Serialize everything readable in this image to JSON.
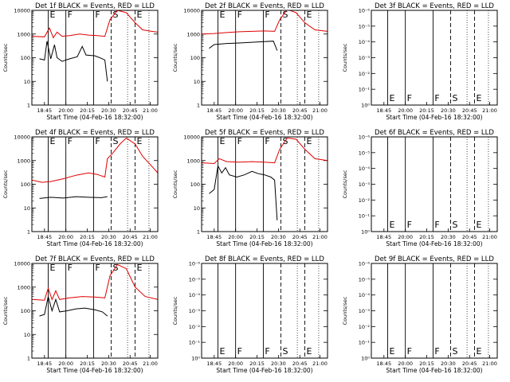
{
  "colors": {
    "events": "#000000",
    "lld": "#e00000",
    "axes": "#000000",
    "background": "#ffffff"
  },
  "chart_data": [
    {
      "type": "line",
      "title": "Det 1f BLACK = Events, RED = LLD",
      "xlabel": "Start Time (04-Feb-16 18:32:00)",
      "ylabel": "Counts/sec",
      "yscale": "log",
      "yticks": [
        "1",
        "10",
        "100",
        "1000",
        "10000"
      ],
      "xticks": [
        "18:45",
        "20:00",
        "20:15",
        "20:30",
        "20:45",
        "21:00"
      ],
      "markers": [
        {
          "label": "E",
          "style": "solid"
        },
        {
          "label": "F",
          "style": "solid"
        },
        {
          "label": "F",
          "style": "solid"
        },
        {
          "label": "S",
          "style": "dashed"
        },
        {
          "label": "E",
          "style": "dashed"
        }
      ],
      "series": [
        {
          "name": "Events",
          "color": "#000000",
          "values": [
            {
              "x": 0.06,
              "y": 90
            },
            {
              "x": 0.1,
              "y": 80
            },
            {
              "x": 0.12,
              "y": 500
            },
            {
              "x": 0.15,
              "y": 90
            },
            {
              "x": 0.18,
              "y": 350
            },
            {
              "x": 0.2,
              "y": 100
            },
            {
              "x": 0.24,
              "y": 70
            },
            {
              "x": 0.3,
              "y": 90
            },
            {
              "x": 0.36,
              "y": 110
            },
            {
              "x": 0.4,
              "y": 300
            },
            {
              "x": 0.43,
              "y": 130
            },
            {
              "x": 0.5,
              "y": 120
            },
            {
              "x": 0.55,
              "y": 95
            },
            {
              "x": 0.58,
              "y": 80
            },
            {
              "x": 0.6,
              "y": 10
            }
          ]
        },
        {
          "name": "LLD",
          "color": "#e00000",
          "values": [
            {
              "x": 0.0,
              "y": 800
            },
            {
              "x": 0.1,
              "y": 760
            },
            {
              "x": 0.14,
              "y": 1800
            },
            {
              "x": 0.17,
              "y": 700
            },
            {
              "x": 0.2,
              "y": 1200
            },
            {
              "x": 0.24,
              "y": 800
            },
            {
              "x": 0.3,
              "y": 850
            },
            {
              "x": 0.38,
              "y": 1000
            },
            {
              "x": 0.45,
              "y": 900
            },
            {
              "x": 0.52,
              "y": 850
            },
            {
              "x": 0.58,
              "y": 800
            },
            {
              "x": 0.62,
              "y": 4000
            },
            {
              "x": 0.68,
              "y": 10000
            },
            {
              "x": 0.75,
              "y": 8000
            },
            {
              "x": 0.82,
              "y": 3000
            },
            {
              "x": 0.88,
              "y": 1500
            },
            {
              "x": 0.95,
              "y": 1300
            },
            {
              "x": 1.0,
              "y": 1200
            }
          ]
        }
      ]
    },
    {
      "type": "line",
      "title": "Det 2f BLACK = Events, RED = LLD",
      "xlabel": "Start Time (04-Feb-16 18:32:00)",
      "ylabel": "Counts/sec",
      "yscale": "log",
      "yticks": [
        "1",
        "10",
        "100",
        "1000",
        "10000"
      ],
      "xticks": [
        "18:45",
        "20:00",
        "20:15",
        "20:30",
        "20:45",
        "21:00"
      ],
      "markers": [
        {
          "label": "E",
          "style": "solid"
        },
        {
          "label": "F",
          "style": "solid"
        },
        {
          "label": "F",
          "style": "solid"
        },
        {
          "label": "S",
          "style": "dashed"
        },
        {
          "label": "E",
          "style": "dashed"
        }
      ],
      "series": [
        {
          "name": "Events",
          "color": "#000000",
          "values": [
            {
              "x": 0.06,
              "y": 250
            },
            {
              "x": 0.1,
              "y": 360
            },
            {
              "x": 0.2,
              "y": 400
            },
            {
              "x": 0.3,
              "y": 420
            },
            {
              "x": 0.4,
              "y": 450
            },
            {
              "x": 0.5,
              "y": 480
            },
            {
              "x": 0.57,
              "y": 500
            },
            {
              "x": 0.6,
              "y": 200
            }
          ]
        },
        {
          "name": "LLD",
          "color": "#e00000",
          "values": [
            {
              "x": 0.0,
              "y": 1000
            },
            {
              "x": 0.1,
              "y": 1050
            },
            {
              "x": 0.2,
              "y": 1150
            },
            {
              "x": 0.3,
              "y": 1250
            },
            {
              "x": 0.4,
              "y": 1300
            },
            {
              "x": 0.5,
              "y": 1350
            },
            {
              "x": 0.58,
              "y": 1300
            },
            {
              "x": 0.62,
              "y": 4000
            },
            {
              "x": 0.68,
              "y": 11000
            },
            {
              "x": 0.75,
              "y": 8000
            },
            {
              "x": 0.82,
              "y": 3000
            },
            {
              "x": 0.9,
              "y": 1500
            },
            {
              "x": 1.0,
              "y": 1300
            }
          ]
        }
      ]
    },
    {
      "type": "line",
      "title": "Det 3f BLACK = Events, RED = LLD",
      "xlabel": "Start Time (04-Feb-16 18:32:00)",
      "ylabel": "Counts/sec",
      "yscale": "log",
      "yticks": [
        "10⁰",
        "10⁻¹",
        "10⁻²",
        "10⁻³",
        "10⁻⁴",
        "10⁻⁵",
        "10⁻⁶"
      ],
      "xticks": [
        "18:45",
        "20:00",
        "20:15",
        "20:30",
        "20:45",
        "21:00"
      ],
      "markers": [
        {
          "label": "E",
          "style": "solid"
        },
        {
          "label": "F",
          "style": "solid"
        },
        {
          "label": "F",
          "style": "solid"
        },
        {
          "label": "S",
          "style": "dashed"
        },
        {
          "label": "E",
          "style": "dashed"
        }
      ],
      "series": []
    },
    {
      "type": "line",
      "title": "Det 4f BLACK = Events, RED = LLD",
      "xlabel": "Start Time (04-Feb-16 18:32:00)",
      "ylabel": "Counts/sec",
      "yscale": "log",
      "yticks": [
        "1",
        "10",
        "100",
        "1000",
        "10000"
      ],
      "xticks": [
        "18:45",
        "20:00",
        "20:15",
        "20:30",
        "20:45",
        "21:00"
      ],
      "markers": [
        {
          "label": "E",
          "style": "solid"
        },
        {
          "label": "F",
          "style": "solid"
        },
        {
          "label": "F",
          "style": "solid"
        },
        {
          "label": "S",
          "style": "dashed"
        },
        {
          "label": "E",
          "style": "dashed"
        }
      ],
      "series": [
        {
          "name": "Events",
          "color": "#000000",
          "values": [
            {
              "x": 0.06,
              "y": 25
            },
            {
              "x": 0.15,
              "y": 28
            },
            {
              "x": 0.25,
              "y": 26
            },
            {
              "x": 0.35,
              "y": 30
            },
            {
              "x": 0.45,
              "y": 28
            },
            {
              "x": 0.55,
              "y": 27
            },
            {
              "x": 0.6,
              "y": 30
            }
          ]
        },
        {
          "name": "LLD",
          "color": "#e00000",
          "values": [
            {
              "x": 0.0,
              "y": 150
            },
            {
              "x": 0.08,
              "y": 120
            },
            {
              "x": 0.15,
              "y": 130
            },
            {
              "x": 0.25,
              "y": 170
            },
            {
              "x": 0.35,
              "y": 240
            },
            {
              "x": 0.45,
              "y": 300
            },
            {
              "x": 0.52,
              "y": 260
            },
            {
              "x": 0.58,
              "y": 200
            },
            {
              "x": 0.6,
              "y": 1200
            },
            {
              "x": 0.64,
              "y": 2000
            },
            {
              "x": 0.7,
              "y": 5000
            },
            {
              "x": 0.75,
              "y": 9000
            },
            {
              "x": 0.82,
              "y": 5000
            },
            {
              "x": 0.88,
              "y": 1500
            },
            {
              "x": 0.95,
              "y": 600
            },
            {
              "x": 1.0,
              "y": 300
            }
          ]
        }
      ]
    },
    {
      "type": "line",
      "title": "Det 5f BLACK = Events, RED = LLD",
      "xlabel": "Start Time (04-Feb-16 18:32:00)",
      "ylabel": "Counts/sec",
      "yscale": "log",
      "yticks": [
        "1",
        "10",
        "100",
        "1000",
        "10000"
      ],
      "xticks": [
        "18:45",
        "20:00",
        "20:15",
        "20:30",
        "20:45",
        "21:00"
      ],
      "markers": [
        {
          "label": "E",
          "style": "solid"
        },
        {
          "label": "F",
          "style": "solid"
        },
        {
          "label": "F",
          "style": "solid"
        },
        {
          "label": "S",
          "style": "dashed"
        },
        {
          "label": "E",
          "style": "dashed"
        }
      ],
      "series": [
        {
          "name": "Events",
          "color": "#000000",
          "values": [
            {
              "x": 0.06,
              "y": 40
            },
            {
              "x": 0.1,
              "y": 60
            },
            {
              "x": 0.13,
              "y": 600
            },
            {
              "x": 0.16,
              "y": 300
            },
            {
              "x": 0.19,
              "y": 500
            },
            {
              "x": 0.22,
              "y": 250
            },
            {
              "x": 0.28,
              "y": 200
            },
            {
              "x": 0.34,
              "y": 250
            },
            {
              "x": 0.4,
              "y": 350
            },
            {
              "x": 0.45,
              "y": 280
            },
            {
              "x": 0.5,
              "y": 250
            },
            {
              "x": 0.55,
              "y": 200
            },
            {
              "x": 0.58,
              "y": 150
            },
            {
              "x": 0.6,
              "y": 3
            }
          ]
        },
        {
          "name": "LLD",
          "color": "#e00000",
          "values": [
            {
              "x": 0.0,
              "y": 800
            },
            {
              "x": 0.1,
              "y": 750
            },
            {
              "x": 0.14,
              "y": 1200
            },
            {
              "x": 0.2,
              "y": 900
            },
            {
              "x": 0.3,
              "y": 850
            },
            {
              "x": 0.4,
              "y": 900
            },
            {
              "x": 0.5,
              "y": 850
            },
            {
              "x": 0.58,
              "y": 800
            },
            {
              "x": 0.62,
              "y": 3000
            },
            {
              "x": 0.68,
              "y": 9000
            },
            {
              "x": 0.75,
              "y": 8000
            },
            {
              "x": 0.82,
              "y": 3000
            },
            {
              "x": 0.9,
              "y": 1200
            },
            {
              "x": 1.0,
              "y": 1000
            }
          ]
        }
      ]
    },
    {
      "type": "line",
      "title": "Det 6f BLACK = Events, RED = LLD",
      "xlabel": "Start Time (04-Feb-16 18:32:00)",
      "ylabel": "Counts/sec",
      "yscale": "log",
      "yticks": [
        "10⁰",
        "10⁻¹",
        "10⁻²",
        "10⁻³",
        "10⁻⁴",
        "10⁻⁵",
        "10⁻⁶"
      ],
      "xticks": [
        "18:45",
        "20:00",
        "20:15",
        "20:30",
        "20:45",
        "21:00"
      ],
      "markers": [
        {
          "label": "E",
          "style": "solid"
        },
        {
          "label": "F",
          "style": "solid"
        },
        {
          "label": "F",
          "style": "solid"
        },
        {
          "label": "S",
          "style": "dashed"
        },
        {
          "label": "E",
          "style": "dashed"
        }
      ],
      "series": []
    },
    {
      "type": "line",
      "title": "Det 7f BLACK = Events, RED = LLD",
      "xlabel": "Start Time (04-Feb-16 18:32:00)",
      "ylabel": "Counts/sec",
      "yscale": "log",
      "yticks": [
        "1",
        "10",
        "100",
        "1000",
        "10000"
      ],
      "xticks": [
        "18:45",
        "20:00",
        "20:15",
        "20:30",
        "20:45",
        "21:00"
      ],
      "markers": [
        {
          "label": "E",
          "style": "solid"
        },
        {
          "label": "F",
          "style": "solid"
        },
        {
          "label": "F",
          "style": "solid"
        },
        {
          "label": "S",
          "style": "dashed"
        },
        {
          "label": "E",
          "style": "dashed"
        }
      ],
      "series": [
        {
          "name": "Events",
          "color": "#000000",
          "values": [
            {
              "x": 0.06,
              "y": 60
            },
            {
              "x": 0.1,
              "y": 70
            },
            {
              "x": 0.13,
              "y": 400
            },
            {
              "x": 0.16,
              "y": 100
            },
            {
              "x": 0.19,
              "y": 300
            },
            {
              "x": 0.22,
              "y": 90
            },
            {
              "x": 0.28,
              "y": 100
            },
            {
              "x": 0.35,
              "y": 120
            },
            {
              "x": 0.42,
              "y": 130
            },
            {
              "x": 0.5,
              "y": 110
            },
            {
              "x": 0.56,
              "y": 90
            },
            {
              "x": 0.6,
              "y": 60
            }
          ]
        },
        {
          "name": "LLD",
          "color": "#e00000",
          "values": [
            {
              "x": 0.0,
              "y": 300
            },
            {
              "x": 0.1,
              "y": 280
            },
            {
              "x": 0.13,
              "y": 900
            },
            {
              "x": 0.16,
              "y": 300
            },
            {
              "x": 0.19,
              "y": 700
            },
            {
              "x": 0.22,
              "y": 300
            },
            {
              "x": 0.3,
              "y": 350
            },
            {
              "x": 0.4,
              "y": 400
            },
            {
              "x": 0.5,
              "y": 380
            },
            {
              "x": 0.58,
              "y": 350
            },
            {
              "x": 0.62,
              "y": 3000
            },
            {
              "x": 0.68,
              "y": 9000
            },
            {
              "x": 0.75,
              "y": 6000
            },
            {
              "x": 0.82,
              "y": 1000
            },
            {
              "x": 0.9,
              "y": 400
            },
            {
              "x": 1.0,
              "y": 300
            }
          ]
        }
      ]
    },
    {
      "type": "line",
      "title": "Det 8f BLACK = Events, RED = LLD",
      "xlabel": "Start Time (04-Feb-16 18:32:00)",
      "ylabel": "Counts/sec",
      "yscale": "log",
      "yticks": [
        "10⁰",
        "10⁻¹",
        "10⁻²",
        "10⁻³",
        "10⁻⁴",
        "10⁻⁵",
        "10⁻⁶"
      ],
      "xticks": [
        "18:45",
        "20:00",
        "20:15",
        "20:30",
        "20:45",
        "21:00"
      ],
      "markers": [
        {
          "label": "E",
          "style": "solid"
        },
        {
          "label": "F",
          "style": "solid"
        },
        {
          "label": "F",
          "style": "solid"
        },
        {
          "label": "S",
          "style": "dashed"
        },
        {
          "label": "E",
          "style": "dashed"
        }
      ],
      "series": []
    },
    {
      "type": "line",
      "title": "Det 9f BLACK = Events, RED = LLD",
      "xlabel": "Start Time (04-Feb-16 18:32:00)",
      "ylabel": "Counts/sec",
      "yscale": "log",
      "yticks": [
        "10⁰",
        "10⁻¹",
        "10⁻²",
        "10⁻³",
        "10⁻⁴",
        "10⁻⁵",
        "10⁻⁶"
      ],
      "xticks": [
        "18:45",
        "20:00",
        "20:15",
        "20:30",
        "20:45",
        "21:00"
      ],
      "markers": [
        {
          "label": "E",
          "style": "solid"
        },
        {
          "label": "F",
          "style": "solid"
        },
        {
          "label": "F",
          "style": "solid"
        },
        {
          "label": "S",
          "style": "dashed"
        },
        {
          "label": "E",
          "style": "dashed"
        }
      ],
      "series": []
    }
  ]
}
